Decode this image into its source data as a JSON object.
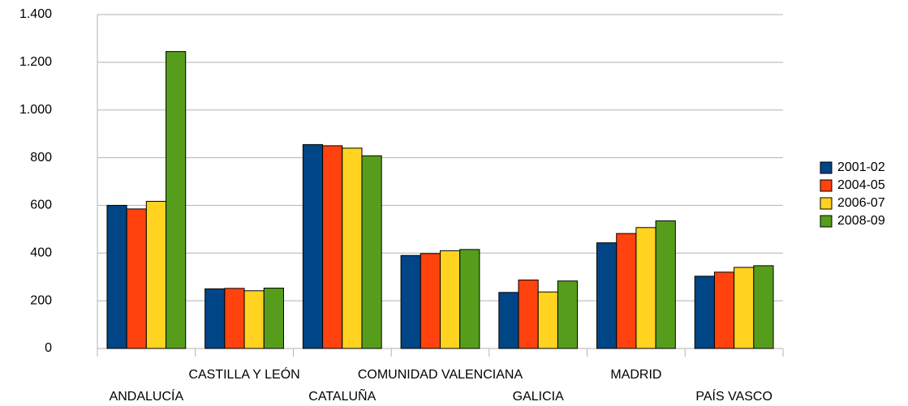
{
  "chart_data": {
    "type": "bar",
    "categories": [
      "ANDALUCÍA",
      "CASTILLA Y LEÓN",
      "CATALUÑA",
      "COMUNIDAD VALENCIANA",
      "GALICIA",
      "MADRID",
      "PAÍS VASCO"
    ],
    "series": [
      {
        "name": "2001-02",
        "color": "#004586",
        "values": [
          600,
          250,
          855,
          390,
          235,
          443,
          303
        ]
      },
      {
        "name": "2004-05",
        "color": "#ff420e",
        "values": [
          585,
          252,
          850,
          398,
          287,
          482,
          320
        ]
      },
      {
        "name": "2006-07",
        "color": "#ffd320",
        "values": [
          617,
          242,
          840,
          410,
          237,
          507,
          340
        ]
      },
      {
        "name": "2008-09",
        "color": "#579d1c",
        "values": [
          1245,
          253,
          808,
          415,
          283,
          535,
          347
        ]
      }
    ],
    "ylim": [
      0,
      1400
    ],
    "yticks": [
      0,
      200,
      400,
      600,
      800,
      {
        "value": 1000,
        "label": "1.000"
      },
      {
        "value": 1200,
        "label": "1.200"
      },
      {
        "value": 1400,
        "label": "1.400"
      }
    ],
    "grid": true,
    "legend": "right"
  }
}
